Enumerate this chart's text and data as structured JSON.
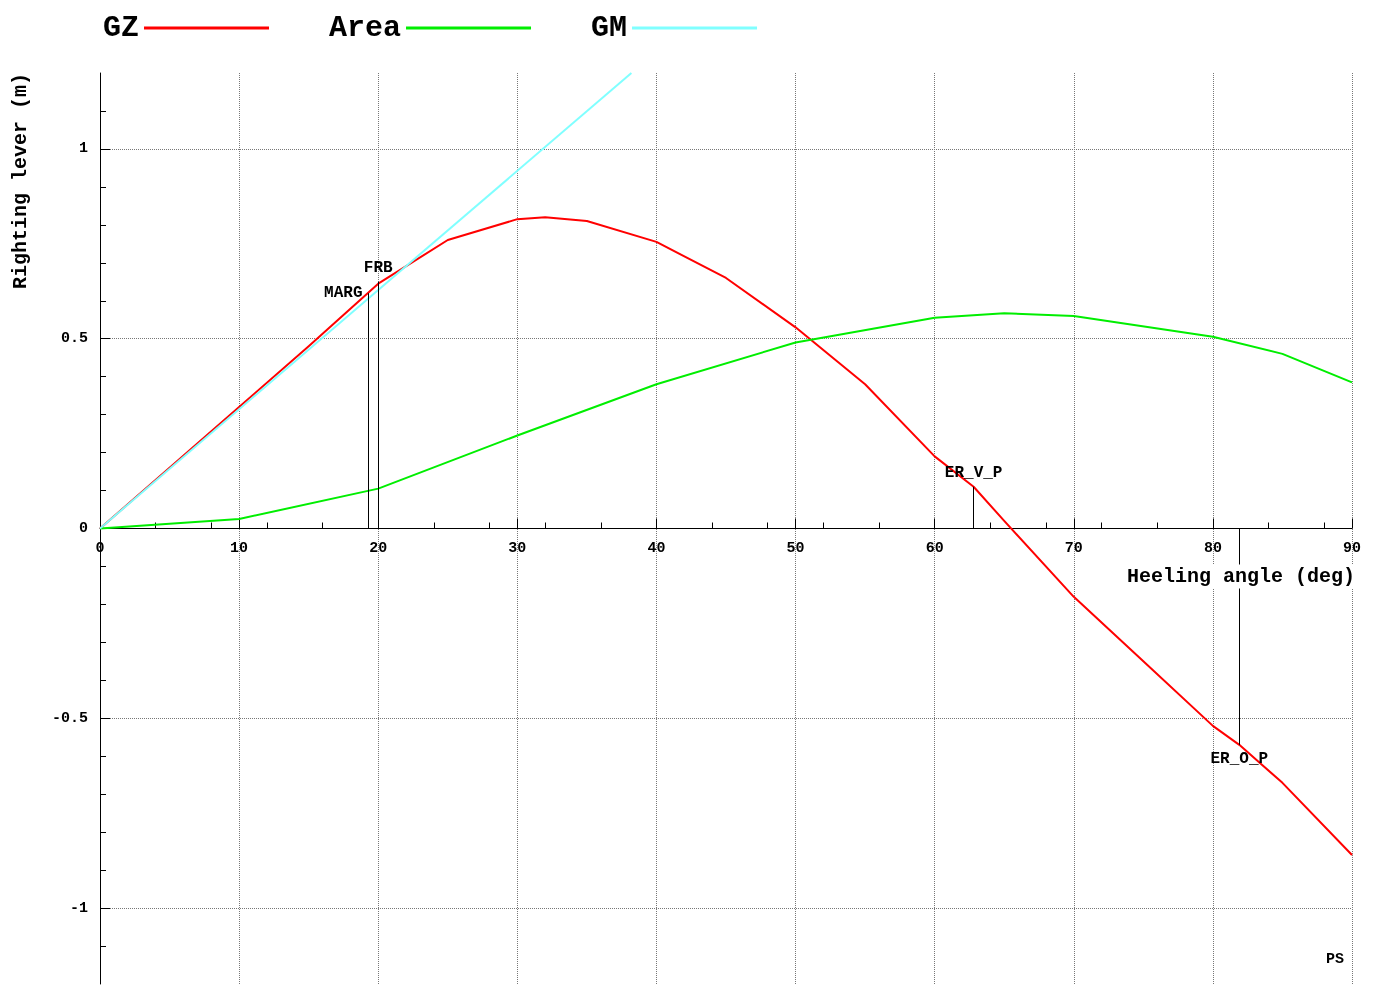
{
  "chart_data": {
    "type": "line",
    "xlabel": "Heeling angle (deg)",
    "ylabel": "Righting lever (m)",
    "xlim": [
      0,
      90
    ],
    "xticks": [
      0,
      10,
      20,
      30,
      40,
      50,
      60,
      70,
      80,
      90
    ],
    "ylim": [
      -1.2,
      1.2
    ],
    "yticks": [
      -1,
      -0.5,
      0,
      0.5,
      1
    ],
    "grid": true,
    "legend": "top left",
    "marker": "none",
    "line_style": "solid",
    "series": [
      {
        "name": "GZ",
        "color": "#ff0000",
        "x": [
          0,
          5,
          10,
          15,
          20,
          25,
          30,
          32,
          35,
          40,
          45,
          50,
          55,
          60,
          62.8,
          65,
          70,
          75,
          80,
          81.9,
          85,
          90
        ],
        "values": [
          0,
          0.16,
          0.32,
          0.48,
          0.645,
          0.76,
          0.815,
          0.82,
          0.81,
          0.755,
          0.66,
          0.53,
          0.38,
          0.19,
          0.11,
          0.02,
          -0.18,
          -0.35,
          -0.52,
          -0.57,
          -0.67,
          -0.86
        ]
      },
      {
        "name": "Area",
        "color": "#00ee00",
        "x": [
          0,
          10,
          20,
          30,
          40,
          50,
          60,
          65,
          70,
          80,
          85,
          90
        ],
        "values": [
          0,
          0.025,
          0.105,
          0.245,
          0.38,
          0.49,
          0.555,
          0.567,
          0.56,
          0.505,
          0.46,
          0.385
        ]
      },
      {
        "name": "GM",
        "color": "#80ffff",
        "x": [
          0,
          38.2
        ],
        "values": [
          0,
          1.2
        ]
      }
    ],
    "annotations": [
      {
        "text": "MARG",
        "x": 19.3,
        "y": 0.62
      },
      {
        "text": "FRB",
        "x": 20,
        "y": 0.65
      },
      {
        "text": "ER_V_P",
        "x": 62.8,
        "y": 0.11
      },
      {
        "text": "ER_O_P",
        "x": 81.9,
        "y": -0.57
      },
      "PS"
    ]
  }
}
